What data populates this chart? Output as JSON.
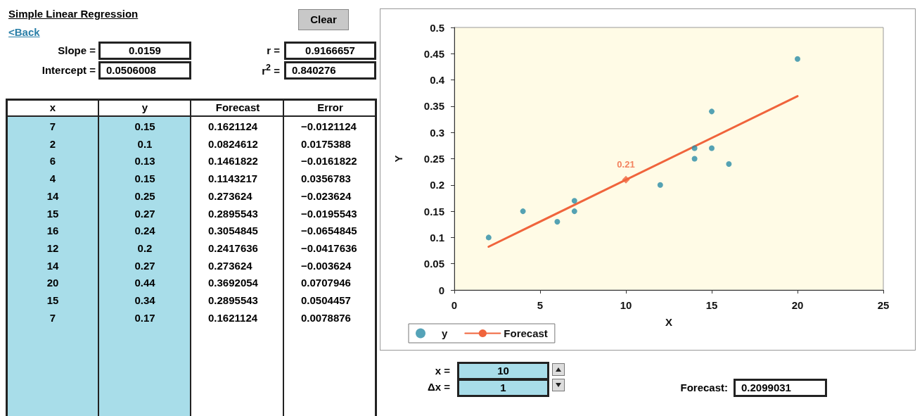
{
  "chart_data": [
    {
      "type": "other",
      "title": "Simple Linear Regression",
      "annotations": [
        "<Back",
        "Clear",
        "Slope =",
        "0.0159",
        "Intercept =",
        "0.0506008",
        "r =",
        "0.9166657",
        "r$^{2}$ =",
        "0.840276",
        "x",
        "y",
        "Forecast",
        "Error",
        "7",
        "0.15",
        "0.1621124",
        "−0.0121124",
        "2",
        "0.1",
        "0.0824612",
        "0.0175388",
        "6",
        "0.13",
        "0.1461822",
        "−0.0161822",
        "4",
        "0.15",
        "0.1143217",
        "0.0356783",
        "14",
        "0.25",
        "0.273624",
        "−0.023624",
        "15",
        "0.27",
        "0.2895543",
        "−0.0195543",
        "16",
        "0.24",
        "0.3054845",
        "−0.0654845",
        "12",
        "0.2",
        "0.2417636",
        "−0.0417636",
        "14",
        "0.27",
        "0.273624",
        "−0.003624",
        "20",
        "0.44",
        "0.3692054",
        "0.0707946",
        "15",
        "0.34",
        "0.2895543",
        "0.0504457",
        "7",
        "0.17",
        "0.1621124",
        "0.0078876",
        "x =",
        "10",
        "Δx =",
        "1",
        "Forecast:",
        "0.2099031"
      ]
    },
    {
      "type": "scatter",
      "xlabel": "X",
      "ylabel": "Y",
      "xlim": [
        0,
        25
      ],
      "xticks": [
        0,
        5,
        10,
        15,
        20,
        25
      ],
      "ylim": [
        0,
        0.5
      ],
      "yticks": [
        0,
        0.05,
        0.1,
        0.15,
        0.2,
        0.25,
        0.3,
        0.35,
        0.4,
        0.45,
        0.5
      ],
      "grid": false,
      "legend": "bottom left",
      "x": [
        7,
        2,
        6,
        4,
        14,
        15,
        16,
        12,
        14,
        20,
        15,
        7
      ],
      "series": [
        {
          "name": "y",
          "type": "scatter",
          "marker": "circle",
          "color": "#2b8ca6",
          "values": [
            0.15,
            0.1,
            0.13,
            0.15,
            0.25,
            0.27,
            0.24,
            0.2,
            0.27,
            0.44,
            0.34,
            0.17
          ]
        },
        {
          "name": "Forecast",
          "type": "line",
          "marker": "none",
          "line_style": "solid",
          "color": "#f0643c",
          "x": [
            2,
            20
          ],
          "values": [
            0.0824612,
            0.3692054
          ]
        },
        {
          "type": "scatter",
          "marker": "diamond",
          "color": "#f0643c",
          "x": [
            10
          ],
          "values": [
            0.21
          ],
          "value_labels": [
            "0.21"
          ]
        }
      ]
    }
  ]
}
